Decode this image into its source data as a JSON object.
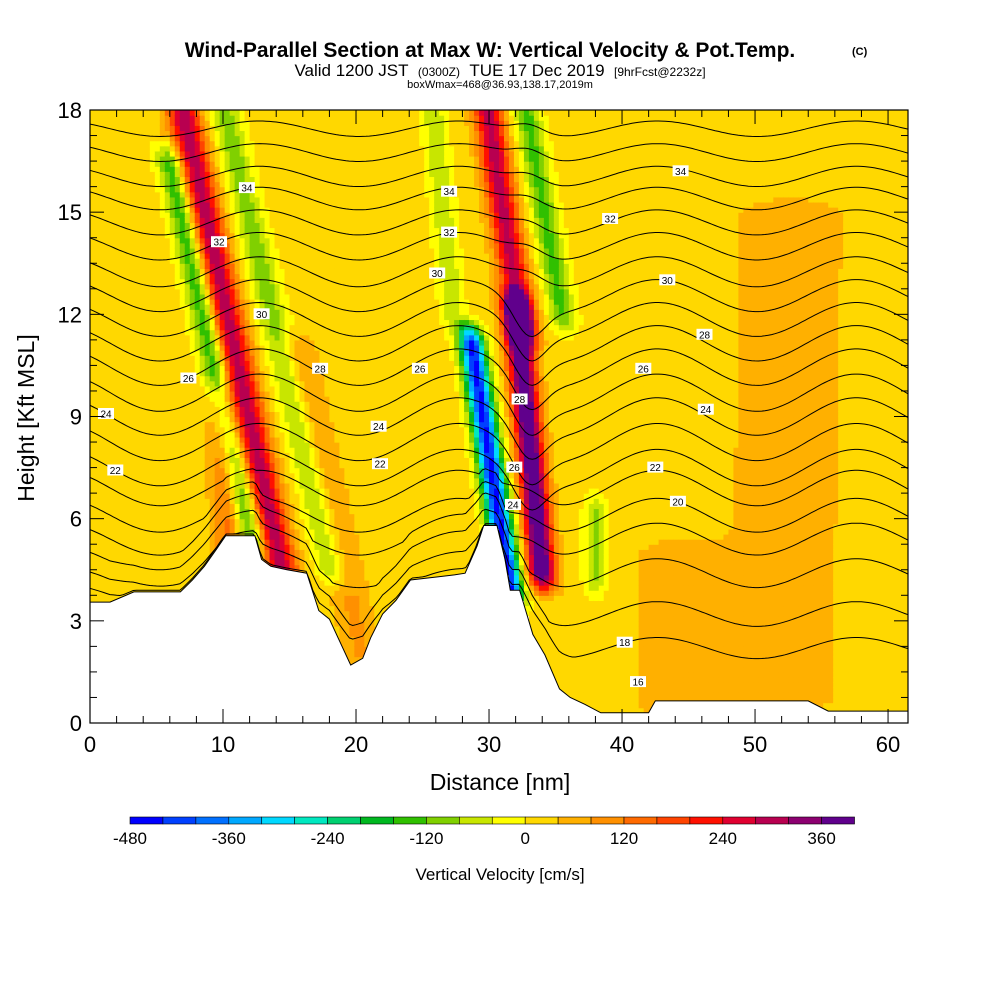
{
  "header": {
    "title": "Wind-Parallel Section at Max W: Vertical Velocity & Pot.Temp.",
    "copyright": "(C)",
    "valid_prefix": "Valid 1200 JST",
    "valid_utc": "(0300Z)",
    "valid_date": "TUE 17 Dec 2019",
    "forecast_info": "[9hrFcst@2232z]",
    "box_info": "boxWmax=468@36.93,138.17,2019m"
  },
  "chart_data": {
    "type": "heatmap",
    "title": "Wind-Parallel Section at Max W: Vertical Velocity & Pot.Temp.",
    "xlabel": "Distance [nm]",
    "ylabel": "Height [Kft MSL]",
    "xlim": [
      0,
      61.5
    ],
    "ylim": [
      0,
      18
    ],
    "x_ticks": [
      0,
      10,
      20,
      30,
      40,
      50,
      60
    ],
    "x_tick_labels": [
      "0",
      "10",
      "20",
      "30",
      "40",
      "50",
      "60"
    ],
    "y_ticks": [
      0,
      3,
      6,
      9,
      12,
      15,
      18
    ],
    "y_tick_labels": [
      "0",
      "3",
      "6",
      "9",
      "12",
      "15",
      "18"
    ],
    "colorbar": {
      "title": "Vertical Velocity [cm/s]",
      "min": -480,
      "max": 420,
      "step": 40,
      "tick_values": [
        -480,
        -360,
        -240,
        -120,
        0,
        120,
        240,
        360
      ],
      "tick_labels": [
        "-480",
        "-360",
        "-240",
        "-120",
        "0",
        "120",
        "240",
        "360"
      ],
      "colors": [
        "#0000ff",
        "#0040ff",
        "#0070ff",
        "#00a8ff",
        "#00d8ff",
        "#00e8c0",
        "#00d070",
        "#00b820",
        "#30c000",
        "#80d000",
        "#c8e600",
        "#ffff00",
        "#ffd800",
        "#ffb000",
        "#ff9000",
        "#ff6a00",
        "#ff4400",
        "#ff1000",
        "#e00030",
        "#b80050",
        "#8c0070",
        "#60008c"
      ]
    },
    "terrain": [
      [
        0,
        3.55
      ],
      [
        1.5,
        3.55
      ],
      [
        3.3,
        3.85
      ],
      [
        6.8,
        3.85
      ],
      [
        7.7,
        4.2
      ],
      [
        8.6,
        4.6
      ],
      [
        9.5,
        5.1
      ],
      [
        10.2,
        5.5
      ],
      [
        12.4,
        5.5
      ],
      [
        12.9,
        4.8
      ],
      [
        13.6,
        4.6
      ],
      [
        14.8,
        4.5
      ],
      [
        16.3,
        4.4
      ],
      [
        17.2,
        3.3
      ],
      [
        18,
        3.05
      ],
      [
        19.6,
        1.7
      ],
      [
        20.5,
        1.9
      ],
      [
        21.1,
        2.5
      ],
      [
        22,
        3.2
      ],
      [
        23,
        3.6
      ],
      [
        24.1,
        4.2
      ],
      [
        26.3,
        4.3
      ],
      [
        27.4,
        4.35
      ],
      [
        28.2,
        4.4
      ],
      [
        29.1,
        5.2
      ],
      [
        29.6,
        5.8
      ],
      [
        30.6,
        5.8
      ],
      [
        31.2,
        4.8
      ],
      [
        31.6,
        3.9
      ],
      [
        32.3,
        3.9
      ],
      [
        33.3,
        2.6
      ],
      [
        34.2,
        2.0
      ],
      [
        35.3,
        1.0
      ],
      [
        36.1,
        0.75
      ],
      [
        37.2,
        0.55
      ],
      [
        38.4,
        0.3
      ],
      [
        42,
        0.3
      ],
      [
        42.5,
        0.65
      ],
      [
        54,
        0.65
      ],
      [
        55.5,
        0.35
      ],
      [
        61.5,
        0.35
      ]
    ],
    "w_features": [
      {
        "x0": 14.4,
        "slope": -0.55,
        "width": 1.2,
        "amp": 290,
        "zmin": 4.5,
        "zmax": 18
      },
      {
        "x0": 12.2,
        "slope": -0.55,
        "width": 1.0,
        "amp": -175,
        "zmin": 5.3,
        "zmax": 16.5
      },
      {
        "x0": 10.6,
        "slope": -0.15,
        "width": 1.1,
        "amp": 120,
        "zmin": 4.2,
        "zmax": 9.5
      },
      {
        "x0": 18.2,
        "slope": -0.6,
        "width": 1.1,
        "amp": -120,
        "zmin": 4.5,
        "zmax": 18
      },
      {
        "x0": 20.5,
        "slope": -0.55,
        "width": 1.4,
        "amp": 70,
        "zmin": 2.0,
        "zmax": 11
      },
      {
        "x0": 34.0,
        "slope": -0.25,
        "width": 1.0,
        "amp": 420,
        "zmin": 4.4,
        "zmax": 12.2
      },
      {
        "x0": 32.5,
        "slope": -0.4,
        "width": 1.1,
        "amp": 280,
        "zmin": 11.5,
        "zmax": 18
      },
      {
        "x0": 31.6,
        "slope": -0.4,
        "width": 0.95,
        "amp": -470,
        "zmin": 3.9,
        "zmax": 11.2
      },
      {
        "x0": 35.5,
        "slope": -0.45,
        "width": 1.0,
        "amp": -150,
        "zmin": 12,
        "zmax": 18
      },
      {
        "x0": 27.3,
        "slope": -0.25,
        "width": 0.9,
        "amp": -90,
        "zmin": 12,
        "zmax": 18
      },
      {
        "x0": 38.0,
        "slope": 0.0,
        "width": 0.8,
        "amp": -110,
        "zmin": 4.2,
        "zmax": 6.2
      },
      {
        "x0": 52.0,
        "slope": 0.05,
        "width": 4.5,
        "amp": 45,
        "zmin": 0.7,
        "zmax": 15
      },
      {
        "x0": 44.0,
        "slope": 0.0,
        "width": 3.5,
        "amp": 40,
        "zmin": 0.5,
        "zmax": 5
      }
    ],
    "theta_contours": [
      {
        "base": 2.2,
        "label": "18",
        "label_x": 40.2
      },
      {
        "base": 3.2,
        "label": "",
        "label_x": null
      },
      {
        "base": 4.4,
        "label": "",
        "label_x": null
      },
      {
        "base": 5.4,
        "label": "",
        "label_x": null
      },
      {
        "base": 6.1,
        "label": "20",
        "label_x": 44.2
      },
      {
        "base": 6.9,
        "label": "",
        "label_x": null
      },
      {
        "base": 7.5,
        "label": "22",
        "label_x": 1.9
      },
      {
        "base": 8.25,
        "label": "",
        "label_x": null
      },
      {
        "base": 9.0,
        "label": "24",
        "label_x": 1.2
      },
      {
        "base": 9.7,
        "label": "",
        "label_x": null
      },
      {
        "base": 10.45,
        "label": "26",
        "label_x": 7.4
      },
      {
        "base": 11.15,
        "label": "",
        "label_x": null
      },
      {
        "base": 11.85,
        "label": "",
        "label_x": null
      },
      {
        "base": 12.55,
        "label": "30",
        "label_x": 43.4
      },
      {
        "base": 13.25,
        "label": "",
        "label_x": null
      },
      {
        "base": 14.0,
        "label": "32",
        "label_x": 9.7
      },
      {
        "base": 14.7,
        "label": "",
        "label_x": null
      },
      {
        "base": 15.4,
        "label": "34",
        "label_x": 11.8
      },
      {
        "base": 16.05,
        "label": "",
        "label_x": null
      },
      {
        "base": 16.75,
        "label": "",
        "label_x": null
      },
      {
        "base": 17.45,
        "label": "",
        "label_x": null
      }
    ],
    "extra_contour_labels": [
      {
        "text": "16",
        "x": 41.2,
        "y": 1.2
      },
      {
        "text": "22",
        "x": 21.8,
        "y": 7.6
      },
      {
        "text": "24",
        "x": 21.7,
        "y": 8.7
      },
      {
        "text": "28",
        "x": 17.3,
        "y": 10.4
      },
      {
        "text": "26",
        "x": 24.8,
        "y": 10.4
      },
      {
        "text": "30",
        "x": 12.9,
        "y": 12.0
      },
      {
        "text": "30",
        "x": 26.1,
        "y": 13.2
      },
      {
        "text": "32",
        "x": 27.0,
        "y": 14.4
      },
      {
        "text": "34",
        "x": 27.0,
        "y": 15.6
      },
      {
        "text": "32",
        "x": 39.1,
        "y": 14.8
      },
      {
        "text": "34",
        "x": 44.4,
        "y": 16.2
      },
      {
        "text": "28",
        "x": 46.2,
        "y": 11.4
      },
      {
        "text": "26",
        "x": 41.6,
        "y": 10.4
      },
      {
        "text": "24",
        "x": 46.3,
        "y": 9.2
      },
      {
        "text": "22",
        "x": 42.5,
        "y": 7.5
      },
      {
        "text": "28",
        "x": 32.3,
        "y": 9.5
      },
      {
        "text": "26",
        "x": 31.9,
        "y": 7.5
      },
      {
        "text": "24",
        "x": 31.8,
        "y": 6.4
      }
    ]
  }
}
